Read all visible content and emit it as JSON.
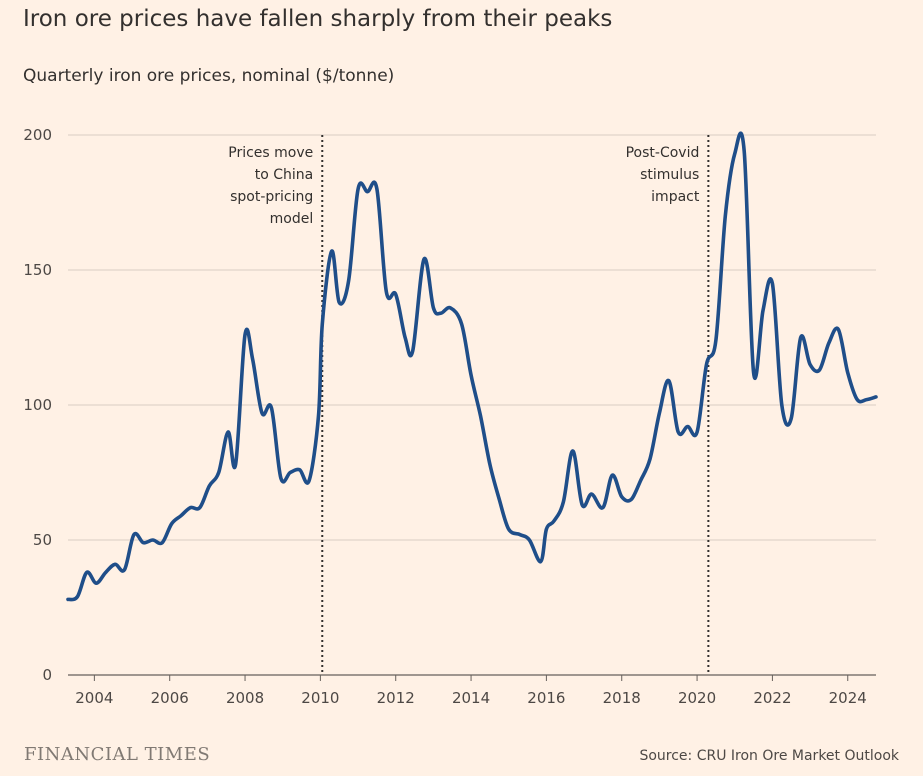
{
  "chart_data": {
    "type": "line",
    "title": "Iron ore prices have fallen sharply from their peaks",
    "subtitle": "Quarterly iron ore prices, nominal ($/tonne)",
    "xlabel": "",
    "ylabel": "",
    "xlim": [
      2003.3,
      2024.75
    ],
    "ylim": [
      0,
      200
    ],
    "yticks": [
      0,
      50,
      100,
      150,
      200
    ],
    "xticks": [
      2004,
      2006,
      2008,
      2010,
      2012,
      2014,
      2016,
      2018,
      2020,
      2022,
      2024
    ],
    "grid": true,
    "line_color": "#1f4e89",
    "series": [
      {
        "name": "Iron ore price",
        "x": [
          2003.3,
          2003.55,
          2003.8,
          2004.05,
          2004.3,
          2004.55,
          2004.8,
          2005.05,
          2005.3,
          2005.55,
          2005.8,
          2006.05,
          2006.3,
          2006.55,
          2006.8,
          2007.05,
          2007.3,
          2007.55,
          2007.75,
          2008.0,
          2008.2,
          2008.45,
          2008.7,
          2008.95,
          2009.2,
          2009.45,
          2009.7,
          2009.95,
          2010.05,
          2010.3,
          2010.5,
          2010.75,
          2011.0,
          2011.25,
          2011.5,
          2011.75,
          2012.0,
          2012.25,
          2012.45,
          2012.75,
          2013.0,
          2013.2,
          2013.45,
          2013.75,
          2014.0,
          2014.25,
          2014.5,
          2014.75,
          2015.0,
          2015.3,
          2015.55,
          2015.85,
          2016.0,
          2016.2,
          2016.45,
          2016.7,
          2016.95,
          2017.2,
          2017.5,
          2017.75,
          2018.0,
          2018.25,
          2018.5,
          2018.75,
          2019.0,
          2019.25,
          2019.5,
          2019.75,
          2020.0,
          2020.25,
          2020.5,
          2020.75,
          2021.0,
          2021.25,
          2021.5,
          2021.75,
          2022.0,
          2022.25,
          2022.5,
          2022.75,
          2023.0,
          2023.25,
          2023.5,
          2023.75,
          2024.0,
          2024.25,
          2024.5,
          2024.75
        ],
        "values": [
          28,
          29,
          38,
          34,
          38,
          41,
          39,
          52,
          49,
          50,
          49,
          56,
          59,
          62,
          62,
          70,
          75,
          90,
          78,
          126,
          117,
          97,
          99,
          73,
          75,
          76,
          72,
          96,
          130,
          157,
          138,
          146,
          180,
          179,
          180,
          142,
          141,
          125,
          120,
          154,
          136,
          134,
          136,
          130,
          111,
          96,
          78,
          65,
          54,
          52,
          50,
          42,
          54,
          57,
          64,
          83,
          63,
          67,
          62,
          74,
          66,
          65,
          72,
          80,
          97,
          109,
          90,
          92,
          90,
          115,
          124,
          170,
          193,
          194,
          112,
          135,
          145,
          100,
          95,
          125,
          115,
          113,
          123,
          128,
          112,
          102,
          102,
          103
        ]
      }
    ],
    "vlines": [
      {
        "x": 2010.05,
        "label": [
          "Prices move",
          "to China",
          "spot-pricing",
          "model"
        ]
      },
      {
        "x": 2020.3,
        "label": [
          "Post-Covid",
          "stimulus",
          "impact"
        ]
      }
    ]
  },
  "footer": {
    "brand": "FINANCIAL TIMES",
    "source": "Source: CRU Iron Ore Market Outlook"
  }
}
